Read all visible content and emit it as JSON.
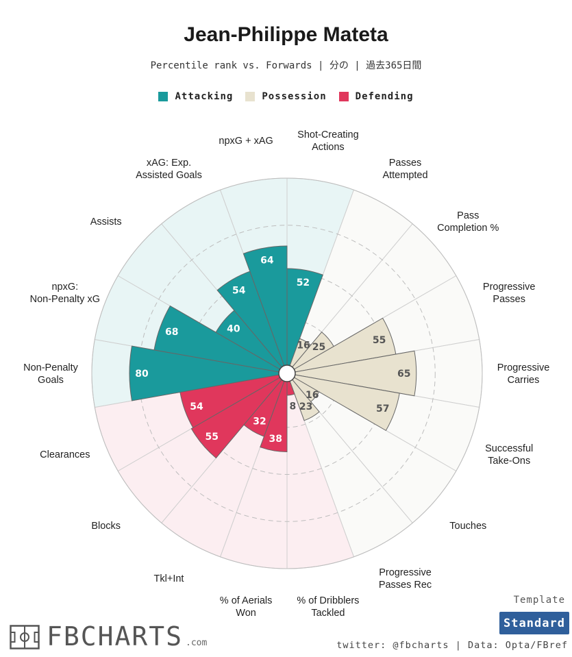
{
  "header": {
    "title": "Jean-Philippe Mateta",
    "subtitle": "Percentile rank vs. Forwards | 分の | 過去365日間"
  },
  "legend": [
    {
      "label": "Attacking",
      "color": "#1a9a9c"
    },
    {
      "label": "Possession",
      "color": "#e8e2cf"
    },
    {
      "label": "Defending",
      "color": "#e0375c"
    }
  ],
  "chart_data": {
    "type": "polar-bar",
    "scale": [
      0,
      100
    ],
    "rings": [
      25,
      50,
      75,
      100
    ],
    "categories": [
      {
        "label": "Shot-Creating Actions",
        "value": 52,
        "group": "Attacking"
      },
      {
        "label": "Passes Attempted",
        "value": 16,
        "group": "Possession"
      },
      {
        "label": "Pass Completion %",
        "value": 25,
        "group": "Possession"
      },
      {
        "label": "Progressive Passes",
        "value": 55,
        "group": "Possession"
      },
      {
        "label": "Progressive Carries",
        "value": 65,
        "group": "Possession"
      },
      {
        "label": "Successful Take-Ons",
        "value": 57,
        "group": "Possession"
      },
      {
        "label": "Touches",
        "value": 16,
        "group": "Possession"
      },
      {
        "label": "Progressive Passes Rec",
        "value": 23,
        "group": "Possession"
      },
      {
        "label": "% of Dribblers Tackled",
        "value": 8,
        "group": "Defending"
      },
      {
        "label": "% of Aerials Won",
        "value": 38,
        "group": "Defending"
      },
      {
        "label": "Tkl+Int",
        "value": 32,
        "group": "Defending"
      },
      {
        "label": "Blocks",
        "value": 55,
        "group": "Defending"
      },
      {
        "label": "Clearances",
        "value": 54,
        "group": "Defending"
      },
      {
        "label": "Non-Penalty Goals",
        "value": 80,
        "group": "Attacking"
      },
      {
        "label": "npxG: Non-Penalty xG",
        "value": 68,
        "group": "Attacking"
      },
      {
        "label": "Assists",
        "value": 40,
        "group": "Attacking"
      },
      {
        "label": "xAG: Exp. Assisted Goals",
        "value": 54,
        "group": "Attacking"
      },
      {
        "label": "npxG + xAG",
        "value": 64,
        "group": "Attacking"
      }
    ],
    "group_colors": {
      "Attacking": {
        "bar": "#1a9a9c",
        "bg": "#e8f5f5",
        "text": "#ffffff"
      },
      "Possession": {
        "bar": "#e8e2cf",
        "bg": "#fafaf8",
        "text": "#555555"
      },
      "Defending": {
        "bar": "#e0375c",
        "bg": "#fceef1",
        "text": "#ffffff"
      }
    }
  },
  "footer": {
    "logo_text": "FBCHARTS",
    "logo_suffix": ".com",
    "template_label": "Template",
    "template_value": "Standard",
    "credit": "twitter: @fbcharts | Data: Opta/FBref"
  }
}
